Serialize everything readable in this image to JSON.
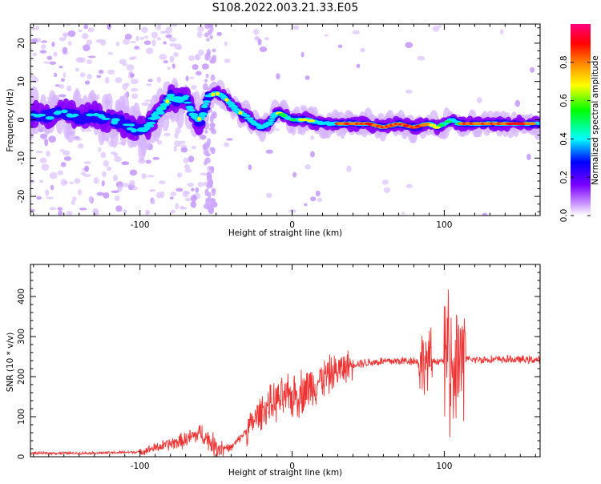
{
  "title": "S108.2022.003.21.33.E05",
  "chart_data": [
    {
      "type": "heatmap",
      "name": "spectrogram",
      "xlabel": "Height of straight line (km)",
      "ylabel": "Frequency (Hz)",
      "xlim": [
        -172,
        163
      ],
      "ylim": [
        -25,
        25
      ],
      "xticks": [
        -100,
        0,
        100
      ],
      "yticks": [
        -20,
        -10,
        0,
        10,
        20
      ],
      "colorbar": {
        "label": "Normalized spectral amplitude",
        "range": [
          0.0,
          1.0
        ],
        "ticks": [
          0.0,
          0.2,
          0.4,
          0.6,
          0.8
        ],
        "colors": [
          "#ffffff",
          "#cc99ff",
          "#7a00ff",
          "#0000ff",
          "#00ffff",
          "#00ff00",
          "#ffff00",
          "#ff8000",
          "#ff0000",
          "#ff0080"
        ]
      },
      "ridge": {
        "x": [
          -172,
          -160,
          -150,
          -140,
          -130,
          -120,
          -110,
          -100,
          -95,
          -90,
          -85,
          -80,
          -75,
          -70,
          -65,
          -60,
          -55,
          -50,
          -45,
          -40,
          -35,
          -30,
          -25,
          -20,
          -15,
          -10,
          -5,
          0,
          10,
          20,
          30,
          40,
          50,
          60,
          70,
          80,
          90,
          95,
          100,
          105,
          110,
          120,
          130,
          140,
          150,
          163
        ],
        "y": [
          1.5,
          1,
          2,
          0.5,
          1,
          0,
          -1,
          -3,
          -2,
          1,
          3,
          6,
          5,
          6,
          1,
          0,
          6,
          7,
          6,
          4,
          2,
          1,
          -1,
          -2,
          -1,
          2,
          1,
          0,
          0,
          -1,
          -1,
          -1,
          -1,
          -2,
          -1,
          -2,
          -1,
          -2,
          -1,
          0,
          -1,
          -1,
          -1,
          -1,
          -1,
          -1
        ]
      }
    },
    {
      "type": "line",
      "name": "snr",
      "xlabel": "Height of straight line (km)",
      "ylabel": "SNR (10 * v/v)",
      "xlim": [
        -172,
        163
      ],
      "ylim": [
        0,
        480
      ],
      "xticks": [
        -100,
        0,
        100
      ],
      "yticks": [
        0,
        100,
        200,
        300,
        400
      ],
      "color": "#ee3333",
      "envelope": {
        "x": [
          -172,
          -140,
          -120,
          -100,
          -90,
          -80,
          -70,
          -60,
          -50,
          -40,
          -30,
          -20,
          -10,
          0,
          10,
          20,
          30,
          40,
          60,
          80,
          85,
          90,
          100,
          105,
          110,
          115,
          130,
          163
        ],
        "y": [
          9,
          9,
          10,
          12,
          22,
          32,
          42,
          60,
          24,
          22,
          65,
          115,
          140,
          150,
          170,
          195,
          215,
          232,
          238,
          240,
          235,
          238,
          240,
          235,
          238,
          242,
          243,
          242
        ]
      }
    }
  ]
}
